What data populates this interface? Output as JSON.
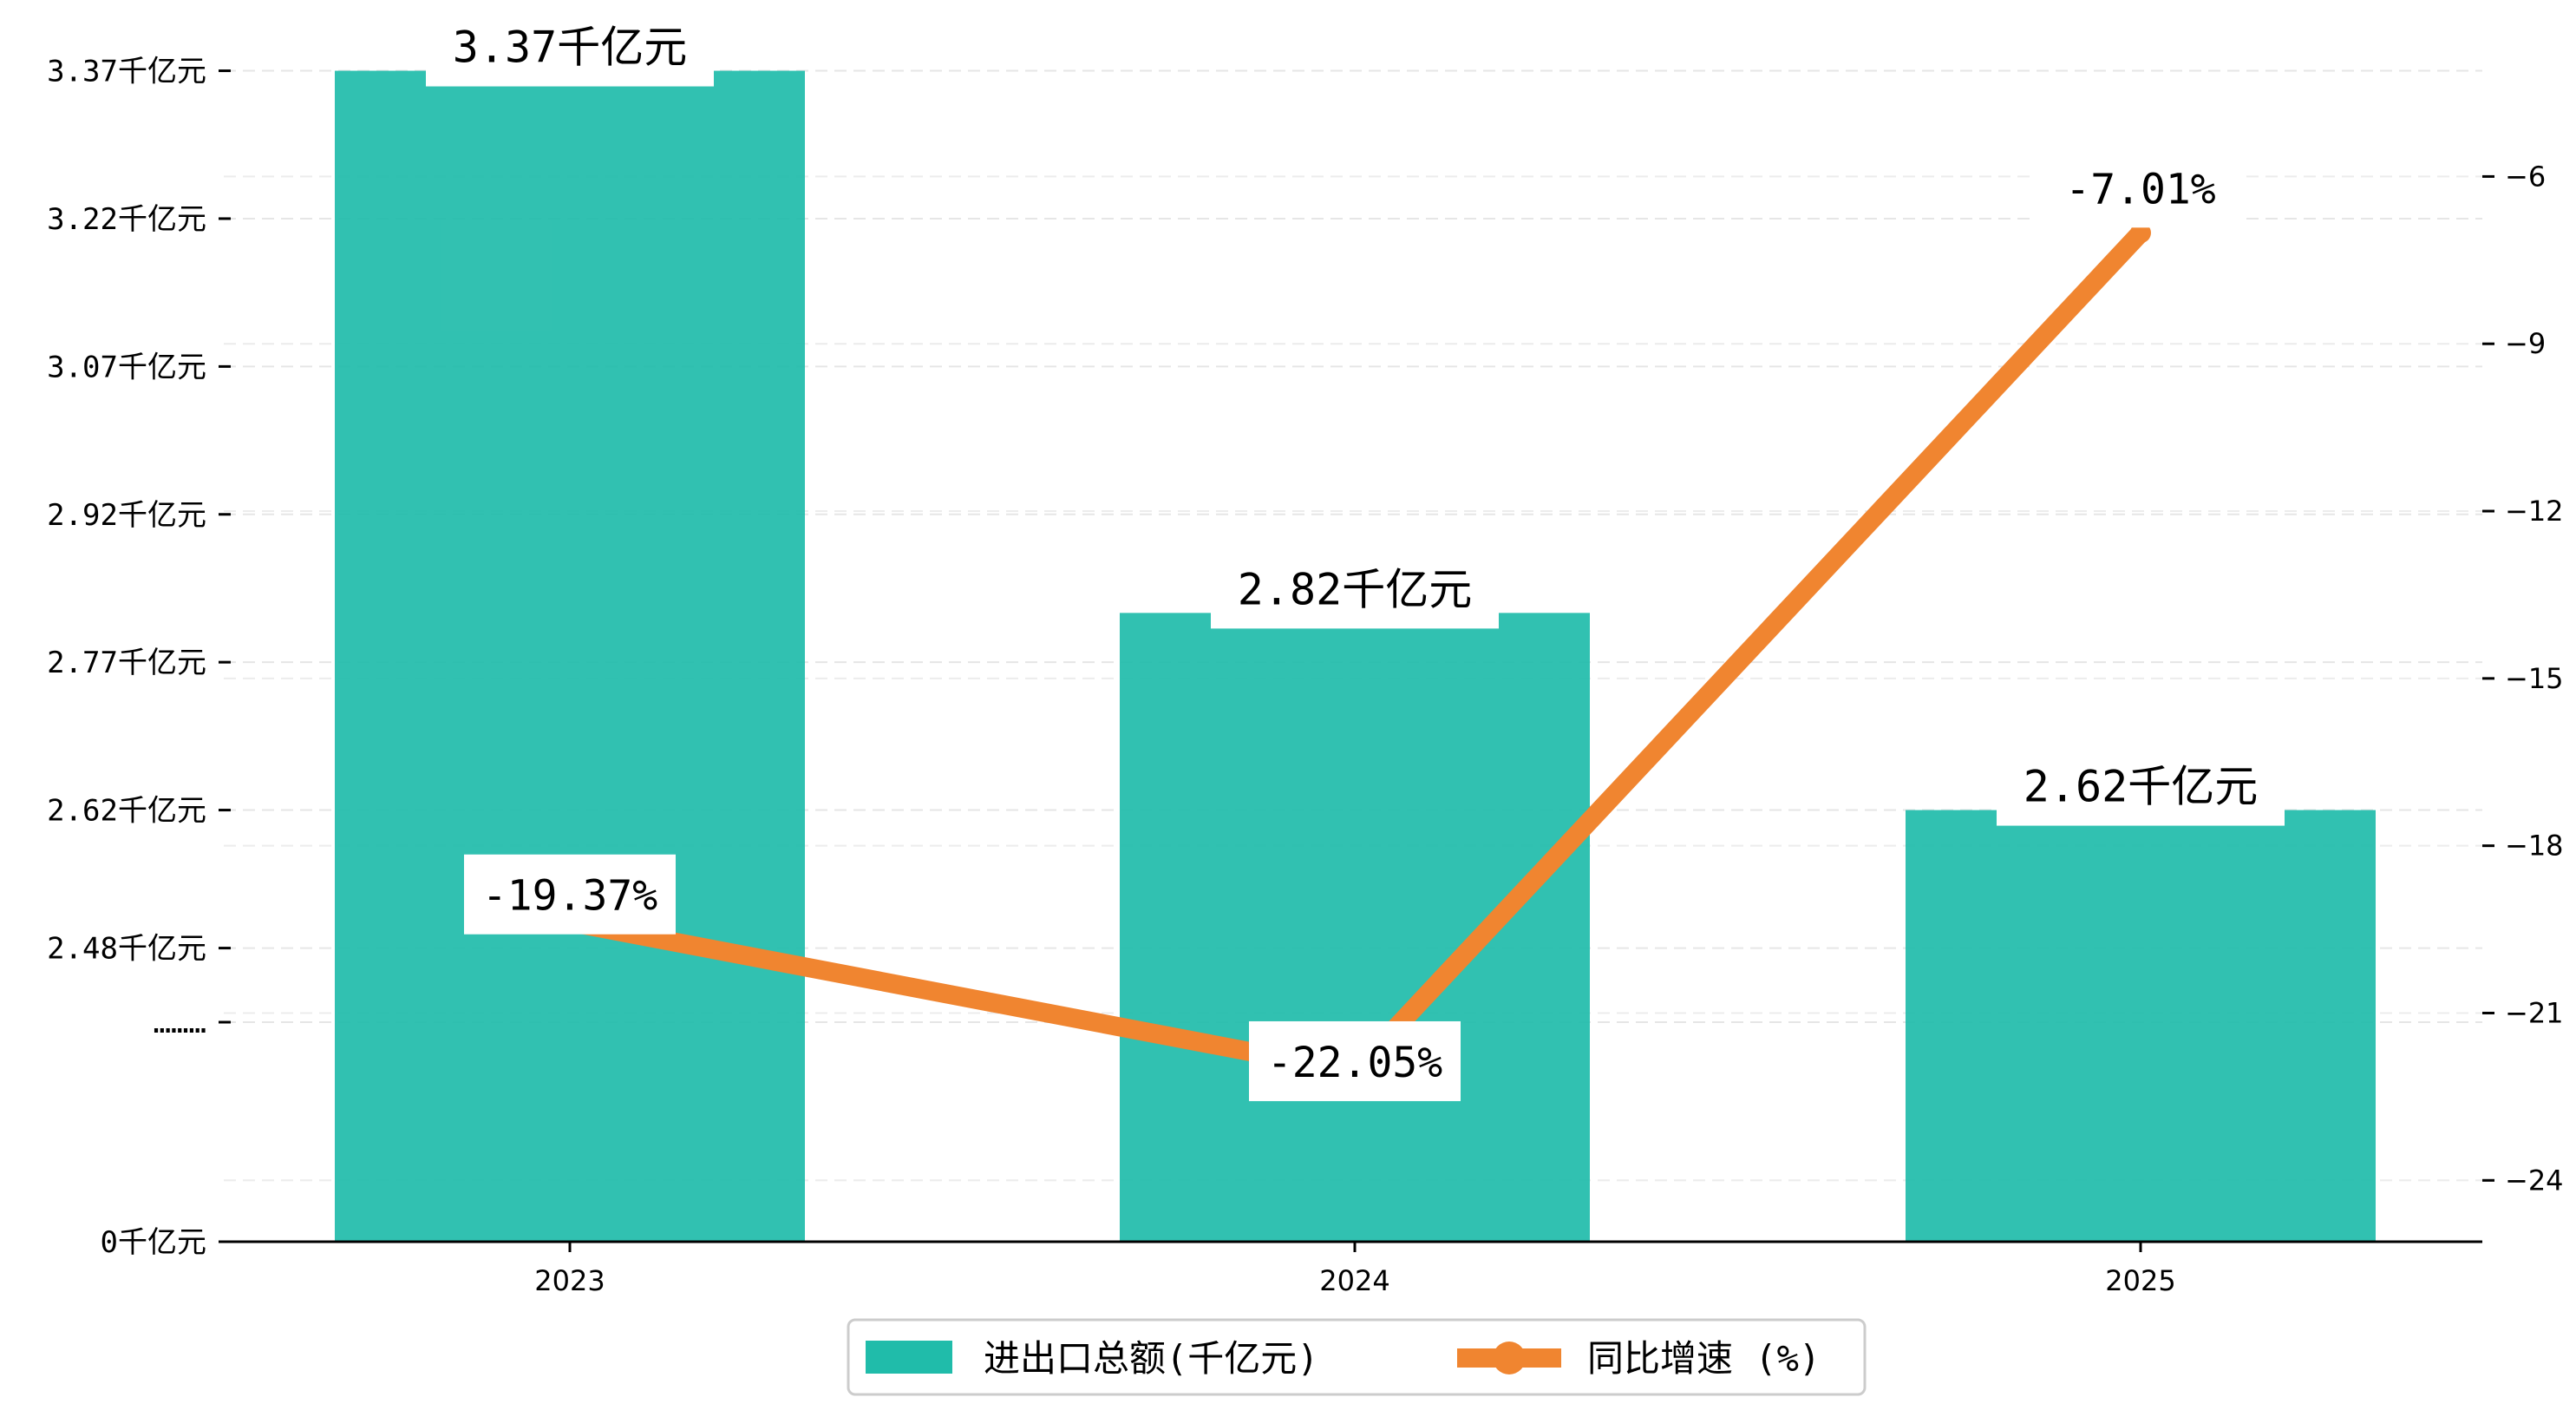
{
  "chart_data": {
    "type": "bar",
    "categories": [
      "2023",
      "2024",
      "2025"
    ],
    "series": [
      {
        "name": "进出口总额(千亿元)",
        "type": "bar",
        "axis": "left",
        "values": [
          3.37,
          2.82,
          2.62
        ],
        "labels": [
          "3.37千亿元",
          "2.82千亿元",
          "2.62千亿元"
        ],
        "color": "#20BCAA"
      },
      {
        "name": "同比增速 (%)",
        "type": "line",
        "axis": "right",
        "values": [
          -19.37,
          -22.05,
          -7.01
        ],
        "labels": [
          "-19.37%",
          "-22.05%",
          "-7.01%"
        ],
        "color": "#F08530"
      }
    ],
    "left_axis": {
      "ticks": [
        {
          "value": 0,
          "label": "0千亿元"
        },
        {
          "value": 0.5,
          "label": "………"
        },
        {
          "value": 2.48,
          "label": "2.48千亿元"
        },
        {
          "value": 2.62,
          "label": "2.62千亿元"
        },
        {
          "value": 2.77,
          "label": "2.77千亿元"
        },
        {
          "value": 2.92,
          "label": "2.92千亿元"
        },
        {
          "value": 3.07,
          "label": "3.07千亿元"
        },
        {
          "value": 3.22,
          "label": "3.22千亿元"
        },
        {
          "value": 3.37,
          "label": "3.37千亿元"
        }
      ],
      "note": "broken axis: 0 to 0.5 then 2.33 to 3.37"
    },
    "right_axis": {
      "ylim": [
        -25.1,
        -3.8
      ],
      "ticks": [
        -6,
        -9,
        -12,
        -15,
        -18,
        -21,
        -24
      ]
    },
    "grid": "horizontal dashed",
    "legend": "bottom-center",
    "legend_items": [
      "进出口总额(千亿元)",
      "同比增速 (%)"
    ]
  }
}
